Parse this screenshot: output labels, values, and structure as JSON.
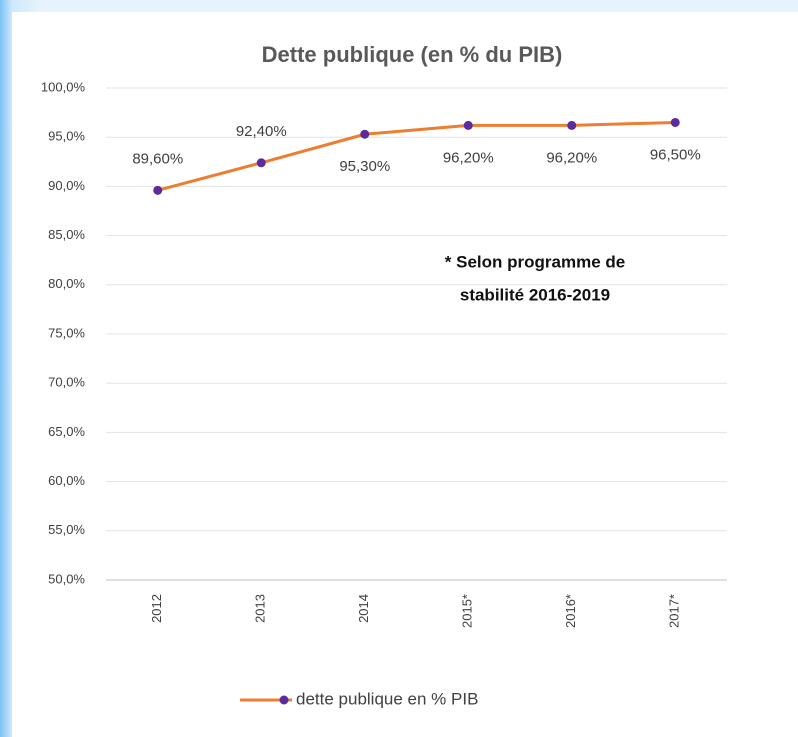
{
  "chart_data": {
    "type": "line",
    "title": "Dette publique (en % du PIB)",
    "categories": [
      "2012",
      "2013",
      "2014",
      "2015*",
      "2016*",
      "2017*"
    ],
    "series": [
      {
        "name": "dette publique en % PIB",
        "color": "#ed7d31",
        "marker_color": "#5b2ca0",
        "values": [
          89.6,
          92.4,
          95.3,
          96.2,
          96.2,
          96.5
        ],
        "value_labels": [
          "89,60%",
          "92,40%",
          "95,30%",
          "96,20%",
          "96,20%",
          "96,50%"
        ]
      }
    ],
    "ylim": [
      50,
      100
    ],
    "yticks": [
      {
        "value": 50,
        "label": "50,0%"
      },
      {
        "value": 55,
        "label": "55,0%"
      },
      {
        "value": 60,
        "label": "60,0%"
      },
      {
        "value": 65,
        "label": "65,0%"
      },
      {
        "value": 70,
        "label": "70,0%"
      },
      {
        "value": 75,
        "label": "75,0%"
      },
      {
        "value": 80,
        "label": "80,0%"
      },
      {
        "value": 85,
        "label": "85,0%"
      },
      {
        "value": 90,
        "label": "90,0%"
      },
      {
        "value": 95,
        "label": "95,0%"
      },
      {
        "value": 100,
        "label": "100,0%"
      }
    ],
    "grid": true,
    "annotation": [
      "* Selon programme de",
      "stabilité 2016-2019"
    ],
    "legend": "bottom"
  }
}
